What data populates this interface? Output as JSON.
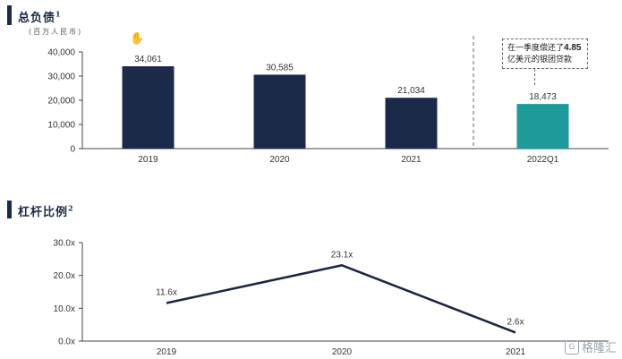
{
  "section1": {
    "title": "总负债",
    "title_sup": "1",
    "unit": "(百万人民币)"
  },
  "section2": {
    "title": "杠杆比例",
    "title_sup": "2"
  },
  "callout": {
    "line1_pre": "在一季度偿还了",
    "line1_bold": "4.85",
    "line2": "亿美元的银团贷款"
  },
  "watermark": {
    "text": "格隆汇",
    "logo": "G"
  },
  "colors": {
    "navy": "#1c2a4a",
    "teal": "#1f9a9a",
    "line": "#1c2540"
  },
  "chart_data": [
    {
      "type": "bar",
      "categories": [
        "2019",
        "2020",
        "2021",
        "2022Q1"
      ],
      "values": [
        34061,
        30585,
        21034,
        18473
      ],
      "value_labels": [
        "34,061",
        "30,585",
        "21,034",
        "18,473"
      ],
      "ylim": [
        0,
        40000
      ],
      "yticks": [
        0,
        10000,
        20000,
        30000,
        40000
      ],
      "ytick_labels": [
        "0",
        "10,000",
        "20,000",
        "30,000",
        "40,000"
      ],
      "bar_colors": [
        "#1c2a4a",
        "#1c2a4a",
        "#1c2a4a",
        "#1f9a9a"
      ],
      "grid": false
    },
    {
      "type": "line",
      "categories": [
        "2019",
        "2020",
        "2021"
      ],
      "values": [
        11.6,
        23.1,
        2.6
      ],
      "value_labels": [
        "11.6x",
        "23.1x",
        "2.6x"
      ],
      "ylim": [
        0,
        30
      ],
      "yticks": [
        0,
        10,
        20,
        30
      ],
      "ytick_labels": [
        "0.0x",
        "10.0x",
        "20.0x",
        "30.0x"
      ],
      "grid": false
    }
  ]
}
